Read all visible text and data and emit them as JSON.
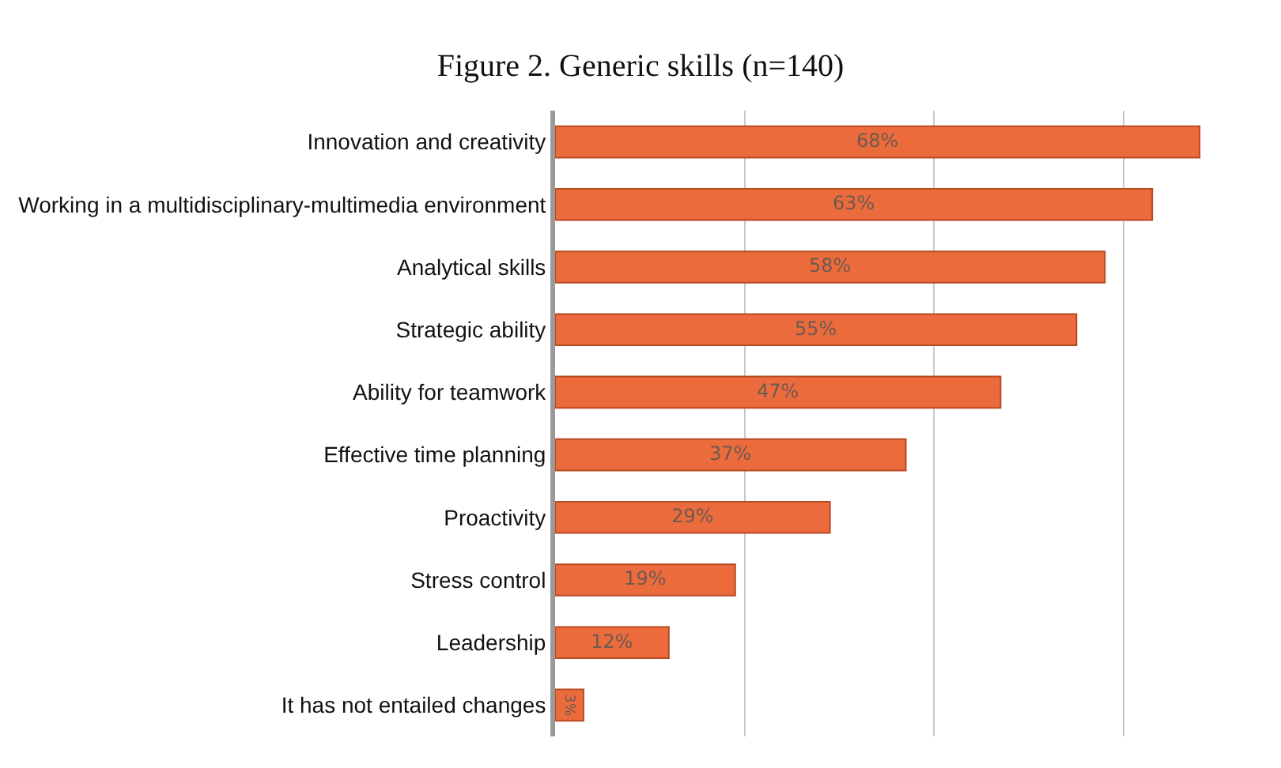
{
  "chart_data": {
    "type": "bar",
    "orientation": "horizontal",
    "title": "Figure 2. Generic skills (n=140)",
    "categories": [
      "Innovation and creativity",
      "Working in a multidisciplinary-multimedia environment",
      "Analytical skills",
      "Strategic ability",
      "Ability for teamwork",
      "Effective time planning",
      "Proactivity",
      "Stress control",
      "Leadership",
      "It has not entailed changes"
    ],
    "values": [
      68,
      63,
      58,
      55,
      47,
      37,
      29,
      19,
      12,
      3
    ],
    "value_labels": [
      "68%",
      "63%",
      "58%",
      "55%",
      "47%",
      "37%",
      "29%",
      "19%",
      "12%",
      "3%"
    ],
    "color": "#ec6b3c",
    "xticks": [
      {
        "value": 0,
        "label": null
      },
      {
        "value": 20,
        "label": null
      },
      {
        "value": 40,
        "label": null
      },
      {
        "value": 60,
        "label": null
      }
    ],
    "grid": "x",
    "tick_labels": "y"
  }
}
